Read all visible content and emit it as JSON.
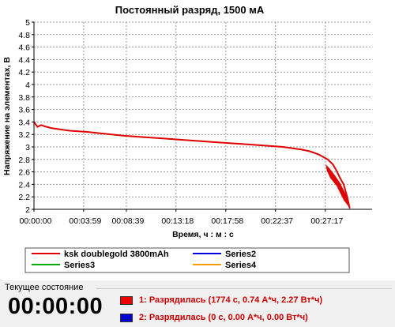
{
  "chart_data": {
    "type": "line",
    "title": "Постоянный разряд, 1500 мА",
    "xlabel": "Время, ч : м : с",
    "ylabel": "Напряжение на элементах, В",
    "ylim": [
      2,
      5
    ],
    "xlim_seconds": [
      0,
      1900
    ],
    "yticks": [
      "2",
      "2.2",
      "2.4",
      "2.6",
      "2.8",
      "3",
      "3.2",
      "3.4",
      "3.6",
      "3.8",
      "4",
      "4.2",
      "4.4",
      "4.6",
      "4.8",
      "5"
    ],
    "xticks": [
      "00:00:00",
      "00:03:59",
      "00:08:39",
      "00:13:18",
      "00:17:58",
      "00:22:37",
      "00:27:17"
    ],
    "grid": true,
    "legend_position": "bottom",
    "series": [
      {
        "name": "ksk doublegold 3800mAh",
        "color": "#e00000",
        "x": [
          0,
          20,
          40,
          60,
          100,
          200,
          300,
          400,
          500,
          600,
          700,
          800,
          900,
          1000,
          1100,
          1200,
          1300,
          1400,
          1500,
          1550,
          1600,
          1650,
          1680,
          1700,
          1720,
          1740,
          1760,
          1774
        ],
        "y": [
          3.4,
          3.32,
          3.35,
          3.33,
          3.3,
          3.26,
          3.24,
          3.21,
          3.18,
          3.16,
          3.14,
          3.12,
          3.1,
          3.08,
          3.06,
          3.04,
          3.02,
          3.0,
          2.96,
          2.93,
          2.88,
          2.8,
          2.72,
          2.62,
          2.5,
          2.4,
          2.2,
          2.02
        ]
      },
      {
        "name": "Series2",
        "color": "#0000dd",
        "x": [],
        "y": []
      },
      {
        "name": "Series3",
        "color": "#00aa00",
        "x": [],
        "y": []
      },
      {
        "name": "Series4",
        "color": "#ff9900",
        "x": [],
        "y": []
      }
    ]
  },
  "status": {
    "caption": "Текущее состояние",
    "elapsed": "00:00:00",
    "channels": [
      {
        "label": "1: Разрядилась (1774 с, 0.74 А*ч, 2.27 Вт*ч)",
        "color": "#ee0000"
      },
      {
        "label": "2: Разрядилась (0 с, 0.00 А*ч, 0.00 Вт*ч)",
        "color": "#0000cc"
      }
    ]
  }
}
